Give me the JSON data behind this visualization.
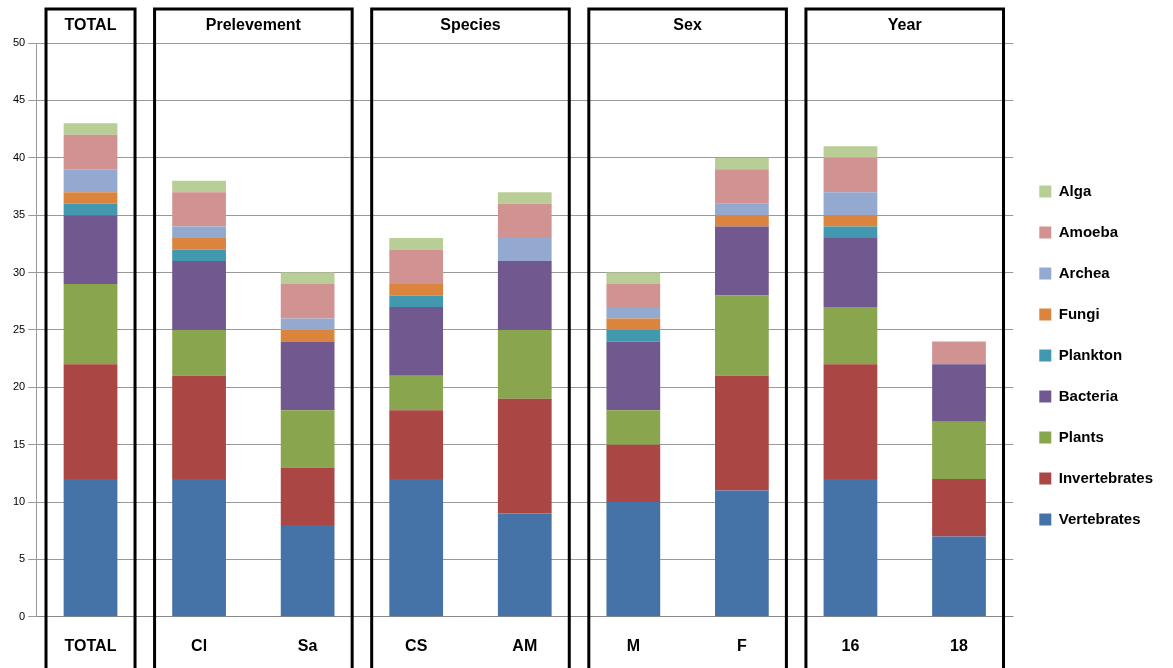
{
  "chart_data": {
    "type": "bar",
    "stacked": true,
    "categories": [
      "TOTAL",
      "Cl",
      "Sa",
      "CS",
      "AM",
      "M",
      "F",
      "16",
      "18"
    ],
    "series": [
      {
        "name": "Vertebrates",
        "color": "#4572a7",
        "values": [
          12,
          12,
          8,
          12,
          9,
          10,
          11,
          12,
          7
        ]
      },
      {
        "name": "Invertebrates",
        "color": "#aa4643",
        "values": [
          10,
          9,
          5,
          6,
          10,
          5,
          10,
          10,
          5
        ]
      },
      {
        "name": "Plants",
        "color": "#89a54e",
        "values": [
          7,
          4,
          5,
          3,
          6,
          3,
          7,
          5,
          5
        ]
      },
      {
        "name": "Bacteria",
        "color": "#71588f",
        "values": [
          6,
          6,
          6,
          6,
          6,
          6,
          6,
          6,
          5
        ]
      },
      {
        "name": "Plankton",
        "color": "#4198af",
        "values": [
          1,
          1,
          0,
          1,
          0,
          1,
          0,
          1,
          0
        ]
      },
      {
        "name": "Fungi",
        "color": "#db843d",
        "values": [
          1,
          1,
          1,
          1,
          0,
          1,
          1,
          1,
          0
        ]
      },
      {
        "name": "Archea",
        "color": "#93a9cf",
        "values": [
          2,
          1,
          1,
          0,
          2,
          1,
          1,
          2,
          0
        ]
      },
      {
        "name": "Amoeba",
        "color": "#d19392",
        "values": [
          3,
          3,
          3,
          3,
          3,
          2,
          3,
          3,
          2
        ]
      },
      {
        "name": "Alga",
        "color": "#b9cd96",
        "values": [
          1,
          1,
          1,
          1,
          1,
          1,
          1,
          1,
          0
        ]
      }
    ],
    "ylim": [
      0,
      50
    ],
    "yticks": [
      0,
      5,
      10,
      15,
      20,
      25,
      30,
      35,
      40,
      45,
      50
    ],
    "grid": "y",
    "legend": "right",
    "annotations": [
      "TOTAL",
      "Prelevement",
      "Species",
      "Sex",
      "Year"
    ]
  }
}
